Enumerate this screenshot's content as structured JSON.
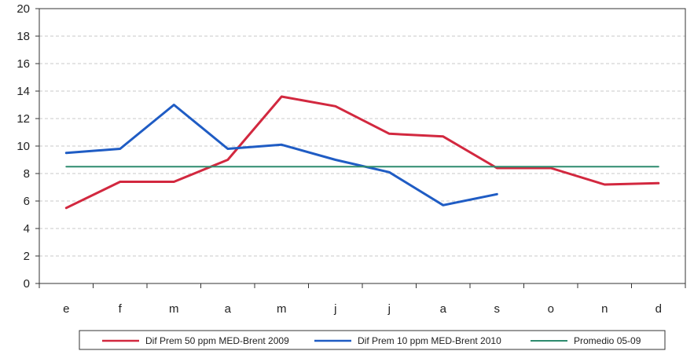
{
  "chart_data": {
    "type": "line",
    "title": "",
    "xlabel": "",
    "ylabel": "",
    "categories": [
      "e",
      "f",
      "m",
      "a",
      "m",
      "j",
      "j",
      "a",
      "s",
      "o",
      "n",
      "d"
    ],
    "ylim": [
      0,
      20
    ],
    "yticks": [
      0,
      2,
      4,
      6,
      8,
      10,
      12,
      14,
      16,
      18,
      20
    ],
    "grid": true,
    "legend_position": "bottom",
    "series": [
      {
        "name": "Dif Prem 50 ppm MED-Brent 2009",
        "color": "#d2283f",
        "values": [
          5.5,
          7.4,
          7.4,
          9.0,
          13.6,
          12.9,
          10.9,
          10.7,
          8.4,
          8.4,
          7.2,
          7.3
        ]
      },
      {
        "name": "Dif Prem 10 ppm MED-Brent 2010",
        "color": "#1f5cc4",
        "values": [
          9.5,
          9.8,
          13.0,
          9.8,
          10.1,
          9.0,
          8.1,
          5.7,
          6.5,
          null,
          null,
          null
        ]
      },
      {
        "name": "Promedio 05-09",
        "color": "#2e8b6e",
        "values": [
          8.5,
          8.5,
          8.5,
          8.5,
          8.5,
          8.5,
          8.5,
          8.5,
          8.5,
          8.5,
          8.5,
          8.5
        ]
      }
    ]
  }
}
